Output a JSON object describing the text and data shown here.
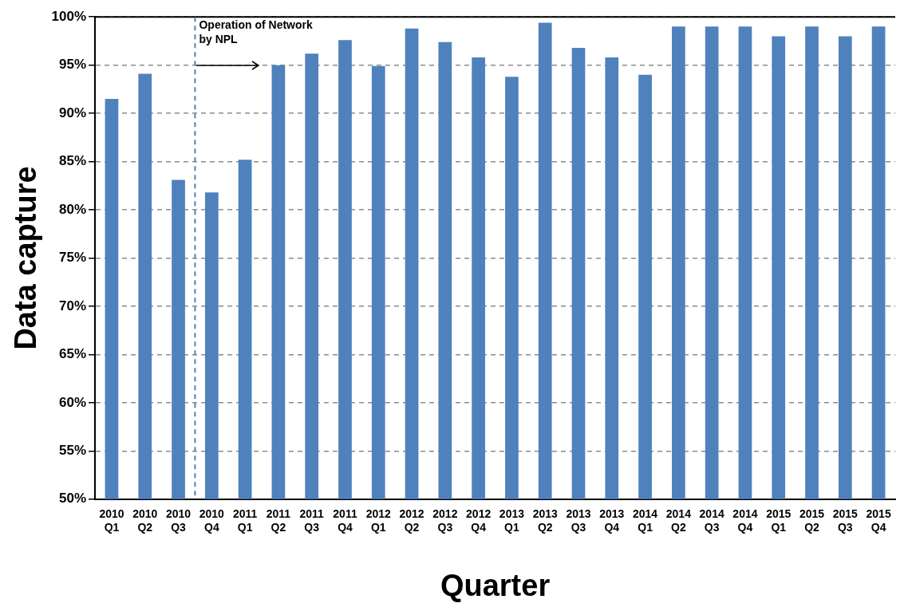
{
  "chart_data": {
    "type": "bar",
    "xlabel": "Quarter",
    "ylabel": "Data capture",
    "categories": [
      "2010 Q1",
      "2010 Q2",
      "2010 Q3",
      "2010 Q4",
      "2011 Q1",
      "2011 Q2",
      "2011 Q3",
      "2011 Q4",
      "2012 Q1",
      "2012 Q2",
      "2012 Q3",
      "2012 Q4",
      "2013 Q1",
      "2013 Q2",
      "2013 Q3",
      "2013 Q4",
      "2014 Q1",
      "2014 Q2",
      "2014 Q3",
      "2014 Q4",
      "2015 Q1",
      "2015 Q2",
      "2015 Q3",
      "2015 Q4"
    ],
    "values": [
      91.5,
      94.1,
      83.1,
      81.8,
      85.2,
      95.0,
      96.2,
      97.6,
      94.9,
      98.8,
      97.4,
      95.8,
      93.8,
      99.4,
      96.8,
      95.8,
      94.0,
      99.0,
      99.0,
      99.0,
      98.0,
      99.0,
      98.0,
      99.0
    ],
    "color": "#4f81bd",
    "ylim": [
      50,
      100
    ],
    "yticks": [
      {
        "value": 50,
        "label": "50%"
      },
      {
        "value": 55,
        "label": "55%"
      },
      {
        "value": 60,
        "label": "60%"
      },
      {
        "value": 65,
        "label": "65%"
      },
      {
        "value": 70,
        "label": "70%"
      },
      {
        "value": 75,
        "label": "75%"
      },
      {
        "value": 80,
        "label": "80%"
      },
      {
        "value": 85,
        "label": "85%"
      },
      {
        "value": 90,
        "label": "90%"
      },
      {
        "value": 95,
        "label": "95%"
      },
      {
        "value": 100,
        "label": "100%"
      }
    ],
    "grid": "y",
    "legend": false,
    "ref_lines": [
      {
        "axis": "x",
        "value": "2010 Q4",
        "label": "Operation of Network by NPL",
        "color": "#4f81bd",
        "line_style": "dashed"
      }
    ]
  }
}
